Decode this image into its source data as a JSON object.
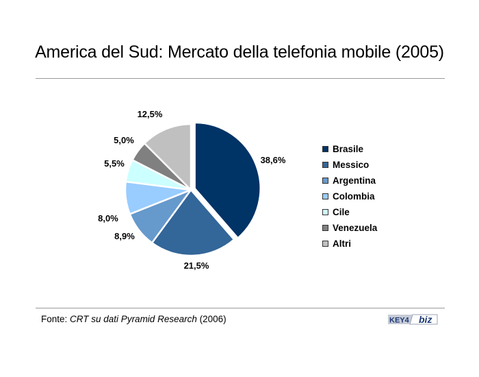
{
  "title": "America del Sud: Mercato della telefonia mobile (2005)",
  "source": {
    "prefix": "Fonte: ",
    "name": "CRT su dati Pyramid Research",
    "year": " (2006)"
  },
  "logo": {
    "left_text": "KEY4",
    "right_text": "biz"
  },
  "colors": {
    "Brasile": "#003366",
    "Messico": "#336699",
    "Argentina": "#6699cc",
    "Colombia": "#99ccff",
    "Cile": "#ccffff",
    "Venezuela": "#808080",
    "Altri": "#c0c0c0"
  },
  "chart_data": {
    "type": "pie",
    "title": "America del Sud: Mercato della telefonia mobile (2005)",
    "legend": "right",
    "exploded": "Brasile",
    "categories": [
      "Brasile",
      "Messico",
      "Argentina",
      "Colombia",
      "Cile",
      "Venezuela",
      "Altri"
    ],
    "values": [
      38.6,
      21.5,
      8.9,
      8.0,
      5.5,
      5.0,
      12.5
    ],
    "labels": [
      "38,6%",
      "21,5%",
      "8,9%",
      "8,0%",
      "5,5%",
      "5,0%",
      "12,5%"
    ]
  }
}
